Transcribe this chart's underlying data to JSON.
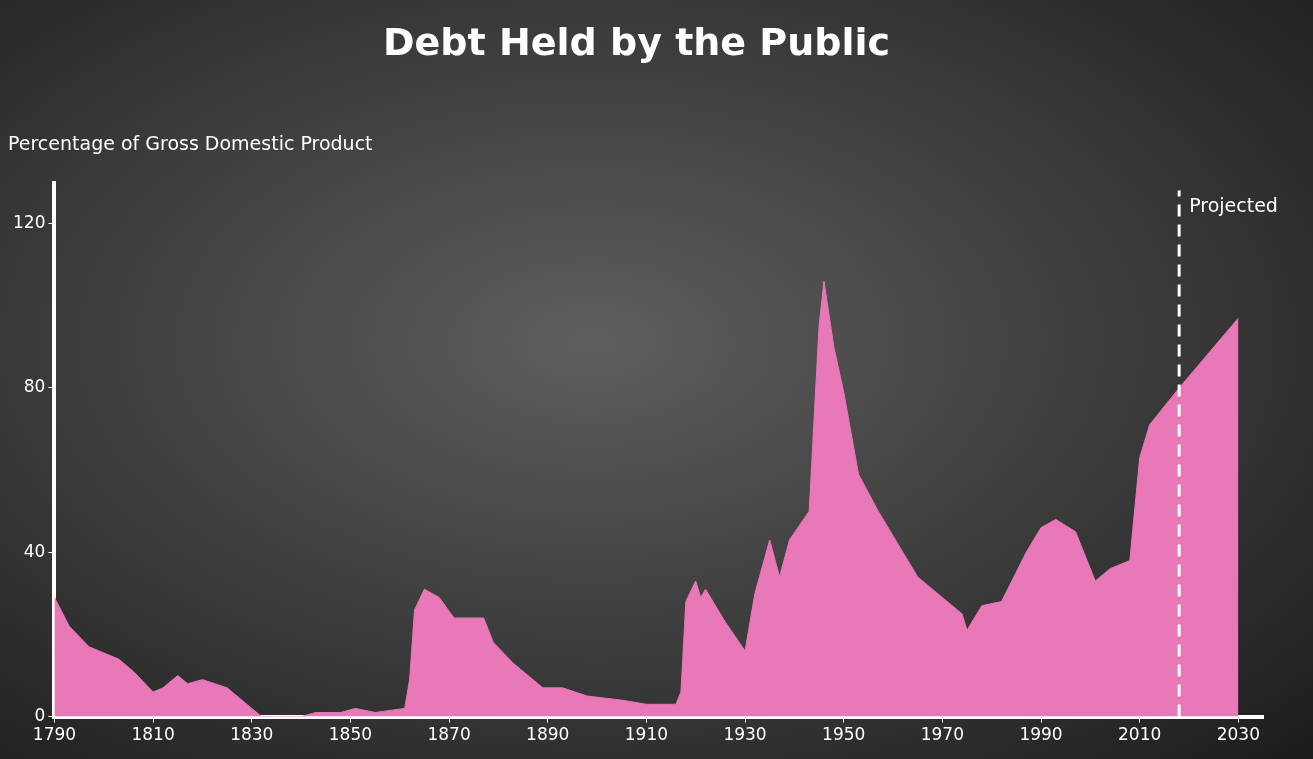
{
  "chart_data": {
    "type": "area",
    "title": "Debt Held by the Public",
    "ylabel": "Percentage of Gross Domestic Product",
    "x": [
      1790,
      1793,
      1797,
      1803,
      1806,
      1810,
      1812,
      1815,
      1817,
      1820,
      1825,
      1830,
      1832,
      1840,
      1843,
      1848,
      1851,
      1855,
      1861,
      1862,
      1863,
      1865,
      1868,
      1871,
      1877,
      1879,
      1883,
      1889,
      1893,
      1898,
      1905,
      1910,
      1916,
      1917,
      1918,
      1920,
      1921,
      1922,
      1926,
      1930,
      1932,
      1935,
      1937,
      1939,
      1943,
      1945,
      1946,
      1948,
      1950,
      1953,
      1957,
      1965,
      1974,
      1975,
      1978,
      1982,
      1987,
      1990,
      1993,
      1997,
      2001,
      2004,
      2008,
      2010,
      2012,
      2016,
      2018,
      2030
    ],
    "series": [
      {
        "color": "#e878b8",
        "values": [
          29,
          22,
          17,
          14,
          11,
          6,
          7,
          10,
          8,
          9,
          7,
          2,
          0,
          0,
          1,
          1,
          2,
          1,
          2,
          9,
          26,
          31,
          29,
          24,
          24,
          18,
          13,
          7,
          7,
          5,
          4,
          3,
          3,
          6,
          28,
          33,
          29,
          31,
          23,
          16,
          30,
          43,
          34,
          43,
          50,
          95,
          106,
          90,
          79,
          59,
          50,
          34,
          25,
          21,
          27,
          28,
          40,
          46,
          48,
          45,
          33,
          36,
          38,
          63,
          71,
          77,
          80,
          97
        ]
      }
    ],
    "xlim": [
      1790,
      2035
    ],
    "xticks": [
      1790,
      1810,
      1830,
      1850,
      1870,
      1890,
      1910,
      1930,
      1950,
      1970,
      1990,
      2010,
      2030
    ],
    "ylim": [
      0,
      130
    ],
    "yticks": [
      0,
      40,
      80,
      120
    ],
    "ref_lines": [
      {
        "axis": "x",
        "value": 2018,
        "label": "Projected",
        "color": "#ffffff",
        "line_style": "dashed"
      }
    ],
    "grid": false,
    "legend": false,
    "marker": "none"
  }
}
